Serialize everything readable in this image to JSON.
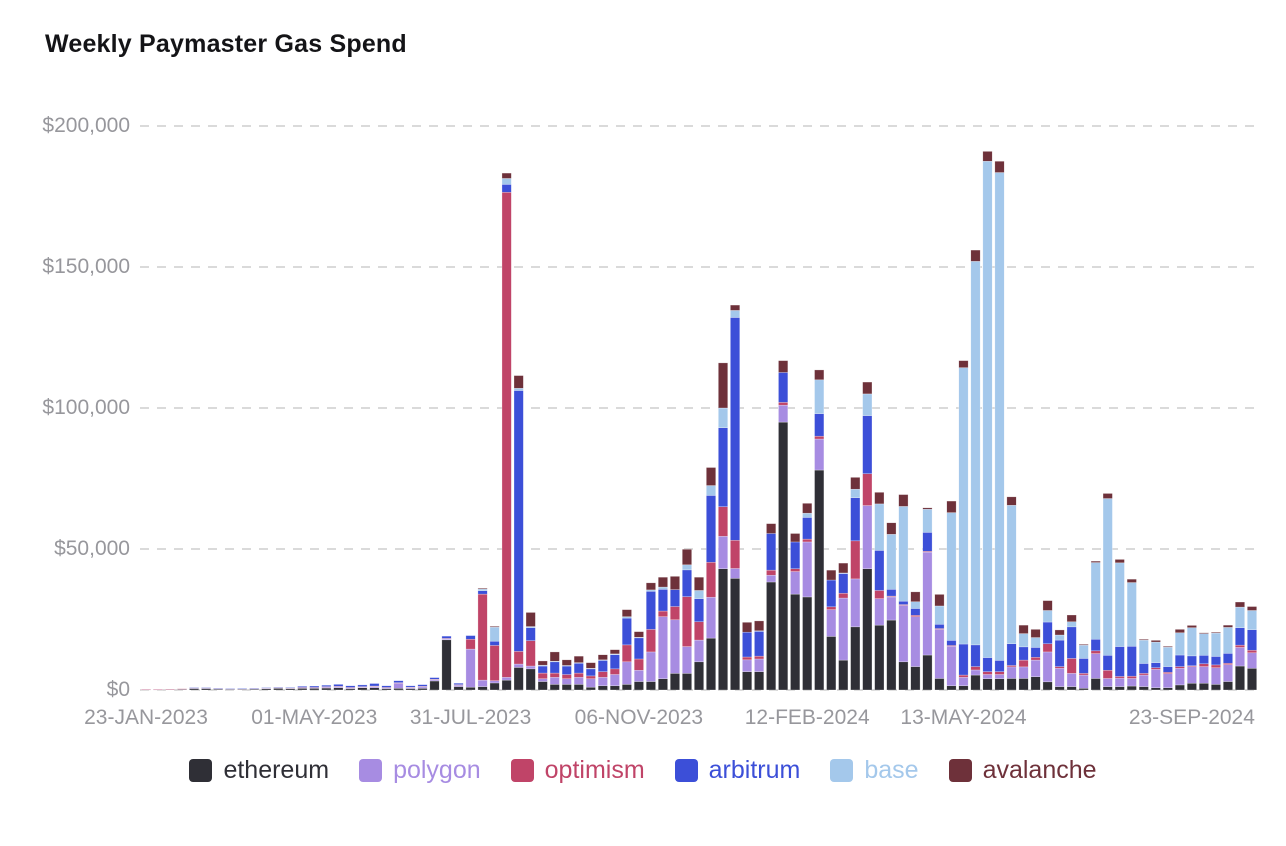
{
  "title": "Weekly Paymaster Gas Spend",
  "chart_data": {
    "type": "bar",
    "stacked": true,
    "unit": "USD",
    "x_axis": {
      "granularity": "weekly",
      "first_label": "23-JAN-2023",
      "last_label": "23-SEP-2024"
    },
    "ylim": [
      0,
      200000
    ],
    "grid": "dashed-horizontal",
    "legend_position": "bottom",
    "y_ticks": [
      {
        "value": 0,
        "label": "$0"
      },
      {
        "value": 50000,
        "label": "$50,000"
      },
      {
        "value": 100000,
        "label": "$100,000"
      },
      {
        "value": 150000,
        "label": "$150,000"
      },
      {
        "value": 200000,
        "label": "$200,000"
      }
    ],
    "x_ticks": [
      {
        "index": 0,
        "label": "23-JAN-2023"
      },
      {
        "index": 14,
        "label": "01-MAY-2023"
      },
      {
        "index": 27,
        "label": "31-JUL-2023"
      },
      {
        "index": 41,
        "label": "06-NOV-2023"
      },
      {
        "index": 55,
        "label": "12-FEB-2024"
      },
      {
        "index": 68,
        "label": "13-MAY-2024"
      },
      {
        "index": 87,
        "label": "23-SEP-2024"
      }
    ],
    "series": [
      {
        "name": "ethereum",
        "color": "#2f2f36",
        "values": [
          200,
          200,
          250,
          300,
          600,
          600,
          400,
          300,
          300,
          400,
          500,
          600,
          500,
          600,
          600,
          700,
          800,
          500,
          800,
          800,
          500,
          600,
          500,
          600,
          3200,
          17800,
          1200,
          1000,
          1200,
          2500,
          3500,
          8000,
          7500,
          3000,
          2000,
          2000,
          2000,
          1000,
          1500,
          1500,
          2000,
          3000,
          3000,
          4000,
          5900,
          5900,
          10000,
          18400,
          43000,
          39600,
          6500,
          6500,
          38300,
          95000,
          34000,
          33000,
          78000,
          19000,
          10600,
          22400,
          43000,
          23000,
          24800,
          10000,
          8300,
          12400,
          4100,
          1500,
          1500,
          5300,
          4000,
          4000,
          4100,
          4100,
          4700,
          2900,
          1200,
          1200,
          600,
          4100,
          1200,
          1200,
          1400,
          1200,
          800,
          800,
          1800,
          2400,
          2400,
          2000,
          3000,
          8500,
          7700
        ]
      },
      {
        "name": "polygon",
        "color": "#a78ce2",
        "values": [
          50,
          50,
          50,
          100,
          100,
          100,
          100,
          100,
          100,
          100,
          150,
          200,
          200,
          200,
          200,
          400,
          400,
          300,
          300,
          400,
          300,
          1800,
          400,
          500,
          400,
          300,
          500,
          13500,
          2300,
          800,
          1000,
          1200,
          1000,
          1000,
          2500,
          2000,
          2500,
          3000,
          3000,
          4000,
          8000,
          4000,
          10500,
          22000,
          19000,
          9500,
          7700,
          14500,
          11500,
          3500,
          4200,
          4500,
          2400,
          6000,
          8000,
          19500,
          11000,
          9500,
          22000,
          17000,
          22400,
          9400,
          8200,
          20000,
          17700,
          36500,
          17400,
          14000,
          3000,
          1800,
          1500,
          1500,
          4100,
          4100,
          5900,
          10600,
          6500,
          4700,
          4700,
          8800,
          2900,
          3000,
          2700,
          4100,
          6500,
          5000,
          5900,
          5900,
          5900,
          5900,
          6000,
          6600,
          5500
        ]
      },
      {
        "name": "optimism",
        "color": "#c04468",
        "values": [
          50,
          50,
          50,
          50,
          100,
          100,
          100,
          50,
          100,
          100,
          100,
          100,
          100,
          100,
          100,
          100,
          100,
          100,
          100,
          200,
          100,
          200,
          100,
          200,
          200,
          200,
          200,
          3500,
          30500,
          12500,
          172000,
          4500,
          9000,
          2000,
          1500,
          1500,
          1500,
          1000,
          2000,
          2000,
          6000,
          4000,
          8000,
          2000,
          4700,
          17700,
          6500,
          12400,
          10500,
          10000,
          1000,
          1000,
          1800,
          1000,
          1000,
          1000,
          1000,
          1000,
          1700,
          13500,
          11300,
          2900,
          300,
          300,
          500,
          300,
          300,
          300,
          800,
          1200,
          1000,
          1000,
          500,
          2400,
          1000,
          2900,
          600,
          5300,
          600,
          1000,
          2900,
          600,
          800,
          600,
          600,
          500,
          600,
          300,
          1000,
          1000,
          500,
          800,
          900
        ]
      },
      {
        "name": "arbitrum",
        "color": "#3c4fd8",
        "values": [
          0,
          0,
          0,
          0,
          50,
          50,
          50,
          50,
          50,
          50,
          100,
          100,
          100,
          400,
          500,
          500,
          700,
          600,
          600,
          900,
          600,
          700,
          500,
          600,
          600,
          800,
          500,
          1300,
          1200,
          1500,
          2800,
          92500,
          4600,
          2500,
          4000,
          3000,
          3500,
          2500,
          4000,
          5000,
          9500,
          7500,
          13500,
          7700,
          6000,
          9500,
          8200,
          23700,
          28000,
          79000,
          8800,
          8800,
          13000,
          10600,
          9500,
          7700,
          8000,
          9500,
          7000,
          15300,
          20600,
          14200,
          2400,
          1200,
          2400,
          6700,
          1500,
          1800,
          11000,
          7700,
          5000,
          4000,
          7700,
          4700,
          3500,
          7700,
          9400,
          11200,
          5300,
          4100,
          5300,
          10600,
          10600,
          3500,
          1800,
          2000,
          4100,
          3500,
          3000,
          3000,
          3500,
          6200,
          7300
        ]
      },
      {
        "name": "base",
        "color": "#a4c8eb",
        "values": [
          0,
          0,
          0,
          0,
          0,
          0,
          0,
          0,
          0,
          0,
          0,
          0,
          0,
          0,
          0,
          0,
          0,
          0,
          0,
          0,
          0,
          0,
          0,
          0,
          0,
          0,
          0,
          0,
          600,
          5000,
          2100,
          800,
          400,
          300,
          200,
          200,
          200,
          200,
          200,
          300,
          500,
          200,
          500,
          800,
          0,
          1800,
          2900,
          3500,
          7000,
          2500,
          0,
          200,
          0,
          0,
          0,
          1500,
          12000,
          0,
          200,
          3000,
          7700,
          16500,
          19500,
          33600,
          2400,
          8200,
          6500,
          45300,
          98000,
          136000,
          176000,
          173000,
          49100,
          4700,
          3500,
          4100,
          1800,
          1800,
          4700,
          27200,
          55600,
          29700,
          22600,
          8300,
          7300,
          6900,
          7900,
          10000,
          7700,
          8300,
          9200,
          7300,
          6800
        ]
      },
      {
        "name": "avalanche",
        "color": "#6e313a",
        "values": [
          0,
          0,
          0,
          0,
          0,
          0,
          0,
          0,
          0,
          0,
          0,
          0,
          0,
          0,
          0,
          0,
          0,
          0,
          0,
          0,
          0,
          0,
          0,
          0,
          0,
          0,
          0,
          0,
          300,
          300,
          1900,
          4500,
          5000,
          1500,
          3300,
          2000,
          2300,
          2000,
          1800,
          1500,
          2500,
          2000,
          2500,
          3500,
          4700,
          5500,
          4700,
          6400,
          16000,
          1900,
          3500,
          3500,
          3500,
          4200,
          3000,
          3500,
          3500,
          3500,
          3500,
          4200,
          4200,
          4100,
          4100,
          4200,
          3500,
          500,
          4100,
          4100,
          2500,
          4000,
          3500,
          4000,
          3000,
          3000,
          2900,
          3500,
          1800,
          2400,
          300,
          500,
          1800,
          1200,
          1200,
          300,
          600,
          300,
          1200,
          800,
          300,
          300,
          800,
          1800,
          1400
        ]
      }
    ]
  },
  "style": {
    "grid_color": "#cdcdcd",
    "axis_text_color": "#97979c",
    "background": "#ffffff",
    "title_color": "#141417"
  }
}
